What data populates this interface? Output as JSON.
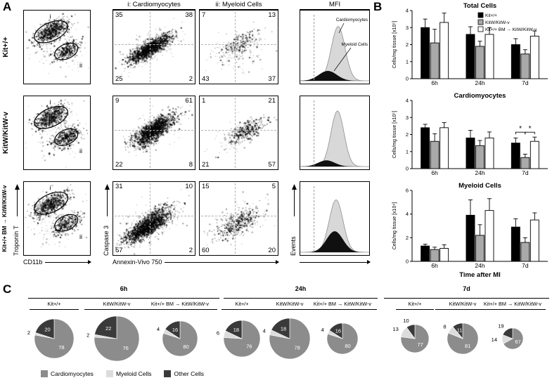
{
  "panel_a": {
    "label": "A",
    "col_headers": [
      "i: Cardiomyocytes",
      "ii: Myeloid Cells",
      "MFI"
    ],
    "axis": {
      "gate_x": "CD11b",
      "gate_y": "Troponin T",
      "quad_x": "Annexin-Vivo 750",
      "quad_y": "Caspase 3",
      "mfi_y": "Events"
    },
    "gate_labels": [
      "i",
      "ii"
    ],
    "mfi_annotations": [
      "Cardiomyocytes",
      "Myeloid Cells"
    ],
    "rows": [
      {
        "genotype": "Kit+/+",
        "cardiomyocytes": {
          "tl": 35,
          "tr": 38,
          "bl": 25,
          "br": 2
        },
        "myeloid": {
          "tl": 7,
          "tr": 13,
          "bl": 43,
          "br": 37
        }
      },
      {
        "genotype": "KitW/KitW-v",
        "cardiomyocytes": {
          "tl": 9,
          "tr": 61,
          "bl": 22,
          "br": 8
        },
        "myeloid": {
          "tl": 1,
          "tr": 21,
          "bl": 21,
          "br": 57
        }
      },
      {
        "genotype": "Kit+/+ BM → KitW/KitW-v",
        "cardiomyocytes": {
          "tl": 31,
          "tr": 10,
          "bl": 57,
          "br": 2
        },
        "myeloid": {
          "tl": 15,
          "tr": 5,
          "bl": 60,
          "br": 20
        }
      }
    ]
  },
  "panel_b": {
    "label": "B"
  },
  "panel_c": {
    "label": "C"
  },
  "chart_data": [
    {
      "type": "bar",
      "title": "Total Cells",
      "ylabel": "Cells/mg tissue [x10⁵]",
      "categories": [
        "6h",
        "24h",
        "7d"
      ],
      "ylim": [
        0,
        4
      ],
      "yticks": [
        0,
        1,
        2,
        3,
        4
      ],
      "legend_position": "top-right",
      "series": [
        {
          "name": "Kit+/+",
          "color": "#000000",
          "values": [
            3.0,
            2.6,
            2.0
          ],
          "errors": [
            0.5,
            0.45,
            0.35
          ]
        },
        {
          "name": "KitW/KitW-v",
          "color": "#a9a9a9",
          "values": [
            2.1,
            1.9,
            1.45
          ],
          "errors": [
            0.8,
            0.3,
            0.25
          ]
        },
        {
          "name": "Kit+/+ BM → KitW/KitW-v",
          "color": "#ffffff",
          "values": [
            3.3,
            2.6,
            2.5
          ],
          "errors": [
            0.55,
            0.4,
            0.3
          ]
        }
      ]
    },
    {
      "type": "bar",
      "title": "Cardiomyocytes",
      "ylabel": "Cells/mg tissue [x10⁵]",
      "categories": [
        "6h",
        "24h",
        "7d"
      ],
      "ylim": [
        0,
        4
      ],
      "yticks": [
        0,
        1,
        2,
        3,
        4
      ],
      "sig": {
        "category": "7d",
        "marks": [
          "*",
          "*"
        ]
      },
      "series": [
        {
          "name": "Kit+/+",
          "color": "#000000",
          "values": [
            2.4,
            1.8,
            1.5
          ],
          "errors": [
            0.2,
            0.45,
            0.3
          ]
        },
        {
          "name": "KitW/KitW-v",
          "color": "#a9a9a9",
          "values": [
            1.6,
            1.35,
            0.65
          ],
          "errors": [
            0.45,
            0.3,
            0.2
          ]
        },
        {
          "name": "Kit+/+ BM → KitW/KitW-v",
          "color": "#ffffff",
          "values": [
            2.4,
            1.8,
            1.6
          ],
          "errors": [
            0.3,
            0.35,
            0.25
          ]
        }
      ]
    },
    {
      "type": "bar",
      "title": "Myeloid Cells",
      "ylabel": "Cells/mg tissue [x10⁴]",
      "xlabel": "Time after MI",
      "categories": [
        "6h",
        "24h",
        "7d"
      ],
      "ylim": [
        0,
        6
      ],
      "yticks": [
        0,
        2,
        4,
        6
      ],
      "series": [
        {
          "name": "Kit+/+",
          "color": "#000000",
          "values": [
            1.3,
            3.9,
            2.9
          ],
          "errors": [
            0.15,
            1.3,
            0.7
          ]
        },
        {
          "name": "KitW/KitW-v",
          "color": "#a9a9a9",
          "values": [
            1.0,
            2.2,
            1.6
          ],
          "errors": [
            0.2,
            0.9,
            0.4
          ]
        },
        {
          "name": "Kit+/+ BM → KitW/KitW-v",
          "color": "#ffffff",
          "values": [
            1.1,
            4.3,
            3.5
          ],
          "errors": [
            0.3,
            1.0,
            0.6
          ]
        }
      ]
    },
    {
      "type": "pie",
      "legend": [
        {
          "label": "Cardiomyocytes",
          "color": "#8c8c8c"
        },
        {
          "label": "Myeloid Cells",
          "color": "#dcdcdc"
        },
        {
          "label": "Other Cells",
          "color": "#3a3a3a"
        }
      ],
      "groups": [
        {
          "time": "6h",
          "pies": [
            {
              "genotype": "Kit+/+",
              "radius": 28,
              "other_label": "in",
              "slices": {
                "cardiomyocytes": 78,
                "myeloid": 2,
                "other": 20
              }
            },
            {
              "genotype": "KitW/KitW-v",
              "radius": 32,
              "other_label": "in",
              "slices": {
                "cardiomyocytes": 76,
                "myeloid": 2,
                "other": 22
              }
            },
            {
              "genotype": "Kit+/+ BM → KitW/KitW-v",
              "radius": 25,
              "other_label": "in",
              "slices": {
                "cardiomyocytes": 80,
                "myeloid": 4,
                "other": 16
              }
            }
          ]
        },
        {
          "time": "24h",
          "pies": [
            {
              "genotype": "Kit+/+",
              "radius": 26,
              "other_label": "in",
              "slices": {
                "cardiomyocytes": 76,
                "myeloid": 6,
                "other": 18
              }
            },
            {
              "genotype": "KitW/KitW-v",
              "radius": 29,
              "other_label": "in",
              "slices": {
                "cardiomyocytes": 78,
                "myeloid": 4,
                "other": 18
              }
            },
            {
              "genotype": "Kit+/+ BM → KitW/KitW-v",
              "radius": 22,
              "other_label": "in",
              "slices": {
                "cardiomyocytes": 80,
                "myeloid": 4,
                "other": 16
              }
            }
          ]
        },
        {
          "time": "7d",
          "pies": [
            {
              "genotype": "Kit+/+",
              "radius": 20,
              "other_label": "out",
              "slices": {
                "cardiomyocytes": 77,
                "myeloid": 13,
                "other": 10
              }
            },
            {
              "genotype": "KitW/KitW-v",
              "radius": 22,
              "other_label": "in",
              "slices": {
                "cardiomyocytes": 81,
                "myeloid": 8,
                "other": 11
              }
            },
            {
              "genotype": "Kit+/+ BM → KitW/KitW-v",
              "radius": 15,
              "other_label": "out",
              "slices": {
                "cardiomyocytes": 67,
                "myeloid": 14,
                "other": 19
              }
            }
          ]
        }
      ]
    }
  ]
}
